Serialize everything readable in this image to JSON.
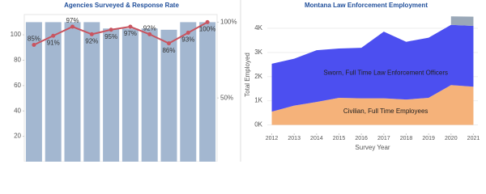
{
  "chart_data": [
    {
      "type": "bar",
      "title": "Agencies Surveyed & Response Rate",
      "categories": [
        null,
        null,
        null,
        null,
        null,
        null,
        null,
        null,
        null,
        null
      ],
      "series": [
        {
          "color": "#a3b7d0",
          "values": [
            110,
            110,
            110,
            110,
            105,
            105,
            105,
            104,
            110,
            110
          ]
        },
        {
          "type": "line",
          "axis": "y2",
          "color": "#c9545f",
          "values": [
            85,
            91,
            97,
            92,
            95,
            97,
            92,
            86,
            93,
            100
          ],
          "value_labels": [
            "85%",
            "91%",
            "97%",
            "92%",
            "95%",
            "97%",
            "92%",
            "86%",
            "93%",
            "100%"
          ]
        }
      ],
      "ylim": [
        0,
        116
      ],
      "yticks": [
        20,
        40,
        60,
        80,
        100
      ],
      "y2lim": [
        8,
        105
      ],
      "y2ticks": [
        {
          "value": 50,
          "label": "50%"
        },
        {
          "value": 100,
          "label": "100%"
        }
      ]
    },
    {
      "type": "area",
      "title": "Montana Law Enforcement Employment",
      "x_label": "Survey Year",
      "y_label": "Total Employed",
      "x": [
        2012,
        2013,
        2014,
        2015,
        2016,
        2017,
        2018,
        2019,
        2020,
        2021
      ],
      "series": [
        {
          "name": "Civilian, Full Time Employees",
          "color": "#f5b27a",
          "values": [
            550,
            800,
            950,
            1120,
            1100,
            1100,
            1050,
            1120,
            1650,
            1580
          ]
        },
        {
          "name": "Sworn, Full Time Law Enforcement Officers",
          "color": "#4c4ff0",
          "values": [
            1980,
            1940,
            2140,
            2040,
            2090,
            2760,
            2390,
            2490,
            2490,
            2520
          ]
        },
        {
          "color": "#9aa8b8",
          "values": [
            null,
            null,
            null,
            null,
            null,
            null,
            null,
            null,
            350,
            380
          ]
        }
      ],
      "xlim": [
        2011.8,
        2021.2
      ],
      "xticks": [
        2012,
        2013,
        2014,
        2015,
        2016,
        2017,
        2018,
        2019,
        2020,
        2021
      ],
      "ylim": [
        -350,
        4500
      ],
      "yticks": [
        {
          "value": 0,
          "label": "0K"
        },
        {
          "value": 1000,
          "label": "1K"
        },
        {
          "value": 2000,
          "label": "2K"
        },
        {
          "value": 3000,
          "label": "3K"
        },
        {
          "value": 4000,
          "label": "4K"
        }
      ],
      "grid": true
    }
  ]
}
